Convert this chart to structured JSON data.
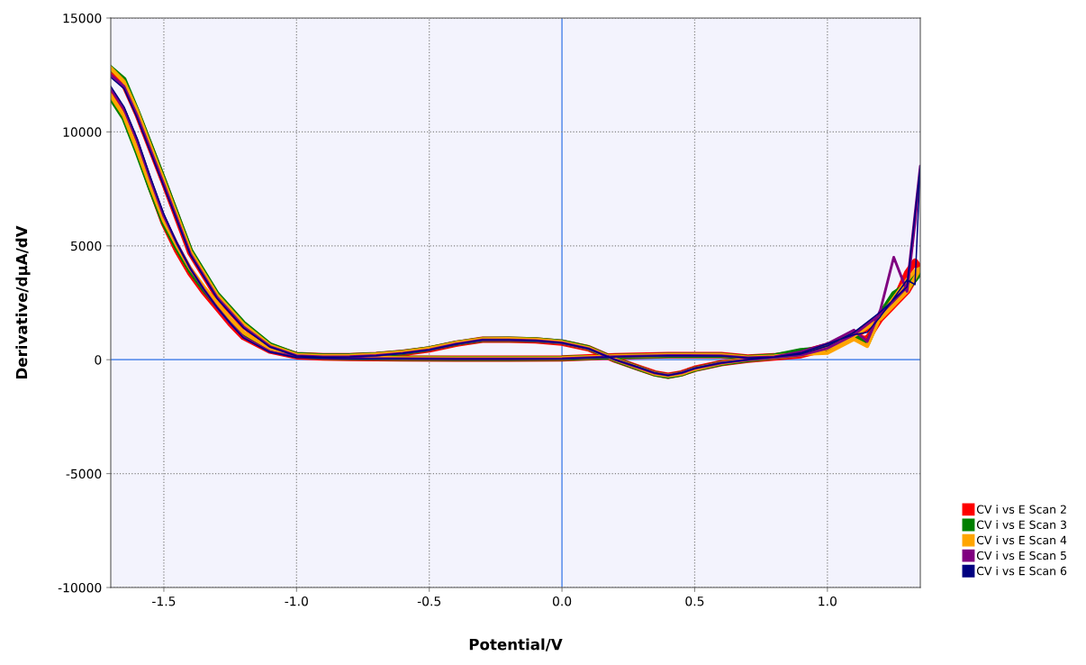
{
  "chart_data": {
    "type": "line",
    "xlabel": "Potential/V",
    "ylabel": "Derivative/dµA/dV",
    "x": [
      -1.7,
      -1.65,
      -1.6,
      -1.55,
      -1.5,
      -1.45,
      -1.4,
      -1.35,
      -1.3,
      -1.25,
      -1.2,
      -1.1,
      -1.0,
      -0.9,
      -0.8,
      -0.6,
      -0.4,
      -0.2,
      0,
      0.2,
      0.4,
      0.6,
      0.7,
      0.8,
      0.9,
      1.0,
      1.1,
      1.15,
      1.2,
      1.25,
      1.3,
      1.33,
      1.35,
      1.3,
      1.2,
      1.1,
      1.0,
      0.9,
      0.8,
      0.7,
      0.6,
      0.5,
      0.45,
      0.4,
      0.35,
      0.3,
      0.2,
      0.1,
      0,
      -0.1,
      -0.2,
      -0.3,
      -0.4,
      -0.5,
      -0.6,
      -0.7,
      -0.8,
      -0.9,
      -1.0,
      -1.1,
      -1.2,
      -1.3,
      -1.4,
      -1.5,
      -1.55,
      -1.6,
      -1.65,
      -1.7
    ],
    "series": [
      {
        "name": "CV i vs E Scan 2",
        "color": "#ff0000",
        "values": [
          11700,
          10800,
          9300,
          7600,
          6000,
          4800,
          3800,
          3000,
          2300,
          1600,
          1000,
          400,
          150,
          100,
          80,
          60,
          50,
          50,
          60,
          150,
          200,
          200,
          100,
          150,
          300,
          600,
          1000,
          900,
          1800,
          2500,
          3800,
          4300,
          4000,
          3000,
          1800,
          1000,
          500,
          200,
          100,
          0,
          -150,
          -400,
          -600,
          -700,
          -600,
          -400,
          0,
          500,
          750,
          850,
          880,
          880,
          700,
          450,
          300,
          200,
          150,
          150,
          200,
          600,
          1500,
          2800,
          4700,
          7800,
          9300,
          10800,
          12100,
          12700
        ]
      },
      {
        "name": "CV i vs E Scan 3",
        "color": "#008000",
        "values": [
          11500,
          10600,
          9100,
          7500,
          6000,
          4900,
          3900,
          3100,
          2400,
          1700,
          1100,
          450,
          180,
          110,
          90,
          60,
          50,
          50,
          60,
          140,
          190,
          190,
          90,
          160,
          400,
          500,
          1100,
          700,
          2000,
          2900,
          3300,
          3600,
          3800,
          3100,
          1900,
          1100,
          550,
          250,
          120,
          0,
          -160,
          -420,
          -620,
          -720,
          -620,
          -420,
          0,
          520,
          780,
          870,
          900,
          890,
          720,
          480,
          320,
          220,
          170,
          160,
          220,
          650,
          1600,
          2900,
          4800,
          7900,
          9400,
          10900,
          12300,
          12800
        ]
      },
      {
        "name": "CV i vs E Scan 4",
        "color": "#ffa500",
        "values": [
          11600,
          10700,
          9200,
          7600,
          6100,
          5000,
          4000,
          3200,
          2500,
          1800,
          1200,
          500,
          200,
          120,
          100,
          70,
          60,
          60,
          70,
          160,
          210,
          210,
          100,
          150,
          250,
          300,
          900,
          600,
          1900,
          2700,
          3500,
          3900,
          4000,
          3000,
          1800,
          1050,
          500,
          220,
          110,
          10,
          -150,
          -410,
          -610,
          -700,
          -610,
          -410,
          10,
          510,
          770,
          880,
          910,
          900,
          730,
          490,
          330,
          230,
          170,
          160,
          210,
          620,
          1550,
          2850,
          4750,
          7850,
          9350,
          10900,
          12200,
          12800
        ]
      },
      {
        "name": "CV i vs E Scan 5",
        "color": "#800080",
        "values": [
          11900,
          11000,
          9600,
          7900,
          6300,
          5100,
          4000,
          3100,
          2300,
          1600,
          1000,
          350,
          120,
          80,
          60,
          50,
          40,
          40,
          50,
          140,
          190,
          180,
          90,
          130,
          350,
          700,
          1300,
          800,
          2200,
          4500,
          3000,
          6000,
          8500,
          3200,
          2000,
          1100,
          500,
          200,
          100,
          0,
          -140,
          -380,
          -580,
          -680,
          -590,
          -390,
          0,
          490,
          740,
          840,
          870,
          870,
          690,
          440,
          290,
          190,
          140,
          130,
          180,
          580,
          1450,
          2750,
          4650,
          7700,
          9200,
          10700,
          12000,
          12500
        ]
      },
      {
        "name": "CV i vs E Scan 6",
        "color": "#000080",
        "values": [
          12000,
          11100,
          9700,
          8000,
          6400,
          5100,
          4000,
          3100,
          2300,
          1600,
          950,
          330,
          100,
          70,
          50,
          40,
          30,
          30,
          40,
          130,
          180,
          170,
          80,
          120,
          300,
          700,
          1100,
          1200,
          1900,
          2700,
          3500,
          3300,
          8500,
          3200,
          2100,
          1200,
          600,
          250,
          120,
          0,
          -140,
          -380,
          -580,
          -690,
          -590,
          -380,
          0,
          480,
          740,
          840,
          870,
          870,
          680,
          430,
          280,
          180,
          130,
          120,
          170,
          560,
          1400,
          2700,
          4600,
          7600,
          9100,
          10600,
          11900,
          12400
        ]
      }
    ],
    "xlim": [
      -1.7,
      1.35
    ],
    "ylim": [
      -10000,
      15000
    ],
    "xticks": [
      -1.5,
      {
        "value": -1.0,
        "label": "-1.0"
      },
      -0.5,
      {
        "value": 0,
        "label": "0.0"
      },
      0.5,
      {
        "value": 1.0,
        "label": "1.0"
      }
    ],
    "yticks": [
      -10000,
      -5000,
      0,
      5000,
      10000,
      15000
    ],
    "grid": true,
    "legend": "bottom right",
    "line_style": "solid",
    "marker": "none"
  }
}
